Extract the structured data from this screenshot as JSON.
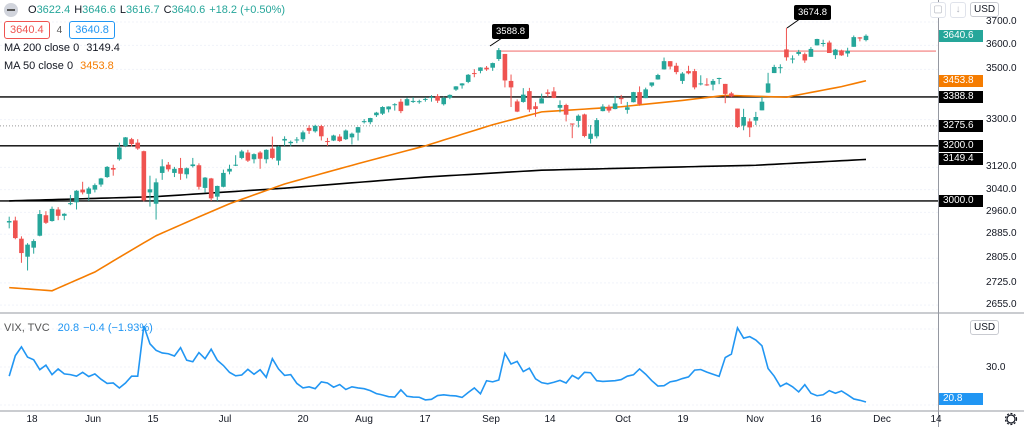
{
  "header": {
    "collapse_icon": "minus-circle-icon",
    "o_label": "O",
    "open": "3622.4",
    "h_label": "H",
    "high": "3646.6",
    "l_label": "L",
    "low": "3616.7",
    "c_label": "C",
    "close": "3640.6",
    "change": "+18.2 (+0.50%)",
    "bid": "3640.4",
    "spread": "4",
    "ask": "3640.8"
  },
  "indicators": [
    {
      "label": "MA 200 close 0",
      "value": "3149.4",
      "color": "#000000"
    },
    {
      "label": "MA 50 close 0",
      "value": "3453.8",
      "color": "#f57c00"
    }
  ],
  "toolbar": {
    "download_icon": "arrow-down-icon",
    "fullscreen_icon": "frame-icon",
    "currency": "USD",
    "vix_currency": "USD",
    "settings_icon": "gear-icon"
  },
  "colors": {
    "up": "#26a69a",
    "down": "#ef5350",
    "ma50": "#f57c00",
    "ma200": "#000000",
    "vix": "#2196f3"
  },
  "price_axis": {
    "scale": "log",
    "ticks": [
      "3700.0",
      "3600.0",
      "3500.0",
      "3300.0",
      "3120.0",
      "3040.0",
      "2960.0",
      "2885.0",
      "2805.0",
      "2725.0",
      "2655.0"
    ],
    "badges": [
      {
        "text": "3640.6",
        "color": "#26a69a"
      },
      {
        "text": "3453.8",
        "color": "#f57c00"
      },
      {
        "text": "3388.8",
        "color": "#000000"
      },
      {
        "text": "3275.6",
        "color": "#000000"
      },
      {
        "text": "3200.0",
        "color": "#000000"
      },
      {
        "text": "3149.4",
        "color": "#000000"
      },
      {
        "text": "3000.0",
        "color": "#000000"
      }
    ]
  },
  "annotations": {
    "callouts": [
      "3588.8",
      "3674.8"
    ],
    "horizontal_lines": [
      3388.8,
      3200,
      3000
    ],
    "dotted_line": 3275.6,
    "resistance_line": 3576
  },
  "time_axis": [
    "18",
    "Jun",
    "15",
    "Jul",
    "20",
    "Aug",
    "17",
    "Sep",
    "14",
    "Oct",
    "19",
    "Nov",
    "16",
    "Dec",
    "14"
  ],
  "vix": {
    "title": "VIX, TVC",
    "value": "20.8",
    "change": "−0.4 (−1.93%)",
    "axis_tick": "30.0",
    "badge": "20.8"
  },
  "chart_data": {
    "type": "candlestick",
    "yscale": "log",
    "ylim": [
      2640,
      3720
    ],
    "candles": [
      [
        "2020-05-11",
        2925,
        2945,
        2905,
        2930
      ],
      [
        "2020-05-12",
        2932,
        2945,
        2868,
        2872
      ],
      [
        "2020-05-13",
        2870,
        2878,
        2790,
        2822
      ],
      [
        "2020-05-14",
        2810,
        2855,
        2765,
        2850
      ],
      [
        "2020-05-15",
        2840,
        2868,
        2820,
        2862
      ],
      [
        "2020-05-18",
        2880,
        2968,
        2878,
        2954
      ],
      [
        "2020-05-19",
        2950,
        2964,
        2920,
        2924
      ],
      [
        "2020-05-20",
        2930,
        2980,
        2928,
        2972
      ],
      [
        "2020-05-21",
        2970,
        2978,
        2933,
        2948
      ],
      [
        "2020-05-22",
        2948,
        2957,
        2933,
        2955
      ],
      [
        "2020-05-26",
        2990,
        3021,
        2985,
        2992
      ],
      [
        "2020-05-27",
        2995,
        3038,
        2970,
        3036
      ],
      [
        "2020-05-28",
        3040,
        3068,
        3023,
        3030
      ],
      [
        "2020-05-29",
        3025,
        3050,
        3000,
        3044
      ],
      [
        "2020-06-01",
        3040,
        3062,
        3030,
        3056
      ],
      [
        "2020-06-02",
        3058,
        3082,
        3050,
        3080
      ],
      [
        "2020-06-03",
        3085,
        3125,
        3082,
        3122
      ],
      [
        "2020-06-04",
        3118,
        3130,
        3090,
        3112
      ],
      [
        "2020-06-05",
        3150,
        3212,
        3145,
        3194
      ],
      [
        "2020-06-08",
        3200,
        3233,
        3195,
        3232
      ],
      [
        "2020-06-09",
        3225,
        3230,
        3198,
        3207
      ],
      [
        "2020-06-10",
        3212,
        3225,
        3185,
        3190
      ],
      [
        "2020-06-11",
        3180,
        3182,
        2998,
        3002
      ],
      [
        "2020-06-12",
        3030,
        3090,
        2980,
        3041
      ],
      [
        "2020-06-15",
        2990,
        3080,
        2935,
        3066
      ],
      [
        "2020-06-16",
        3100,
        3150,
        3075,
        3124
      ],
      [
        "2020-06-17",
        3130,
        3140,
        3105,
        3113
      ],
      [
        "2020-06-18",
        3100,
        3122,
        3085,
        3115
      ],
      [
        "2020-06-19",
        3118,
        3155,
        3075,
        3097
      ],
      [
        "2020-06-22",
        3095,
        3120,
        3080,
        3117
      ],
      [
        "2020-06-23",
        3125,
        3155,
        3120,
        3131
      ],
      [
        "2020-06-24",
        3128,
        3135,
        3040,
        3050
      ],
      [
        "2020-06-25",
        3046,
        3085,
        3030,
        3083
      ],
      [
        "2020-06-26",
        3080,
        3082,
        3000,
        3009
      ],
      [
        "2020-06-29",
        3015,
        3054,
        3000,
        3053
      ],
      [
        "2020-06-30",
        3050,
        3112,
        3048,
        3100
      ],
      [
        "2020-07-01",
        3105,
        3130,
        3095,
        3115
      ],
      [
        "2020-07-02",
        3130,
        3165,
        3125,
        3130
      ],
      [
        "2020-07-06",
        3155,
        3185,
        3150,
        3179
      ],
      [
        "2020-07-07",
        3175,
        3185,
        3140,
        3145
      ],
      [
        "2020-07-08",
        3150,
        3172,
        3135,
        3169
      ],
      [
        "2020-07-09",
        3175,
        3180,
        3115,
        3152
      ],
      [
        "2020-07-10",
        3150,
        3187,
        3135,
        3185
      ],
      [
        "2020-07-13",
        3190,
        3235,
        3150,
        3155
      ],
      [
        "2020-07-14",
        3145,
        3200,
        3128,
        3197
      ],
      [
        "2020-07-15",
        3220,
        3236,
        3200,
        3226
      ],
      [
        "2020-07-16",
        3210,
        3220,
        3198,
        3215
      ],
      [
        "2020-07-17",
        3222,
        3233,
        3210,
        3224
      ],
      [
        "2020-07-20",
        3225,
        3258,
        3215,
        3251
      ],
      [
        "2020-07-21",
        3268,
        3278,
        3245,
        3257
      ],
      [
        "2020-07-22",
        3255,
        3280,
        3250,
        3276
      ],
      [
        "2020-07-23",
        3275,
        3280,
        3220,
        3236
      ],
      [
        "2020-07-24",
        3218,
        3230,
        3200,
        3215
      ],
      [
        "2020-07-27",
        3220,
        3242,
        3218,
        3239
      ],
      [
        "2020-07-28",
        3235,
        3244,
        3215,
        3218
      ],
      [
        "2020-07-29",
        3225,
        3262,
        3222,
        3258
      ],
      [
        "2020-07-30",
        3232,
        3250,
        3205,
        3246
      ],
      [
        "2020-07-31",
        3250,
        3272,
        3220,
        3271
      ],
      [
        "2020-08-03",
        3290,
        3302,
        3285,
        3294
      ],
      [
        "2020-08-04",
        3290,
        3307,
        3282,
        3306
      ],
      [
        "2020-08-05",
        3317,
        3330,
        3310,
        3327
      ],
      [
        "2020-08-06",
        3323,
        3352,
        3318,
        3349
      ],
      [
        "2020-08-07",
        3340,
        3352,
        3328,
        3351
      ],
      [
        "2020-08-10",
        3357,
        3364,
        3335,
        3360
      ],
      [
        "2020-08-11",
        3370,
        3381,
        3325,
        3333
      ],
      [
        "2020-08-12",
        3355,
        3387,
        3354,
        3380
      ],
      [
        "2020-08-13",
        3372,
        3388,
        3365,
        3373
      ],
      [
        "2020-08-14",
        3368,
        3378,
        3362,
        3372
      ],
      [
        "2020-08-17",
        3380,
        3388,
        3370,
        3381
      ],
      [
        "2020-08-18",
        3387,
        3396,
        3370,
        3389
      ],
      [
        "2020-08-19",
        3392,
        3400,
        3365,
        3374
      ],
      [
        "2020-08-20",
        3360,
        3390,
        3355,
        3385
      ],
      [
        "2020-08-21",
        3386,
        3399,
        3380,
        3397
      ],
      [
        "2020-08-24",
        3418,
        3432,
        3413,
        3431
      ],
      [
        "2020-08-25",
        3435,
        3444,
        3422,
        3443
      ],
      [
        "2020-08-26",
        3449,
        3481,
        3444,
        3478
      ],
      [
        "2020-08-27",
        3485,
        3501,
        3468,
        3484
      ],
      [
        "2020-08-28",
        3494,
        3509,
        3484,
        3508
      ],
      [
        "2020-08-31",
        3507,
        3514,
        3494,
        3500
      ],
      [
        "2020-09-01",
        3507,
        3528,
        3494,
        3526
      ],
      [
        "2020-09-02",
        3543,
        3588.8,
        3535,
        3580
      ],
      [
        "2020-09-03",
        3564,
        3564,
        3427,
        3455
      ],
      [
        "2020-09-04",
        3453,
        3479,
        3349,
        3427
      ],
      [
        "2020-09-08",
        3371,
        3379,
        3329,
        3331
      ],
      [
        "2020-09-09",
        3369,
        3424,
        3366,
        3398
      ],
      [
        "2020-09-10",
        3412,
        3425,
        3329,
        3339
      ],
      [
        "2020-09-11",
        3352,
        3368,
        3311,
        3341
      ],
      [
        "2020-09-14",
        3363,
        3402,
        3363,
        3383
      ],
      [
        "2020-09-15",
        3407,
        3419,
        3389,
        3401
      ],
      [
        "2020-09-16",
        3411,
        3428,
        3384,
        3385
      ],
      [
        "2020-09-17",
        3346,
        3375,
        3328,
        3357
      ],
      [
        "2020-09-18",
        3357,
        3362,
        3293,
        3319
      ],
      [
        "2020-09-21",
        3285,
        3285,
        3229,
        3281
      ],
      [
        "2020-09-22",
        3295,
        3320,
        3270,
        3315
      ],
      [
        "2020-09-23",
        3320,
        3323,
        3232,
        3237
      ],
      [
        "2020-09-24",
        3226,
        3279,
        3209,
        3246
      ],
      [
        "2020-09-25",
        3236,
        3306,
        3228,
        3298
      ],
      [
        "2020-09-28",
        3333,
        3360,
        3332,
        3351
      ],
      [
        "2020-09-29",
        3350,
        3358,
        3327,
        3335
      ],
      [
        "2020-09-30",
        3341,
        3393,
        3340,
        3363
      ],
      [
        "2020-10-01",
        3385,
        3397,
        3361,
        3380
      ],
      [
        "2020-10-02",
        3338,
        3369,
        3323,
        3348
      ],
      [
        "2020-10-05",
        3368,
        3409,
        3367,
        3408
      ],
      [
        "2020-10-06",
        3408,
        3431,
        3354,
        3361
      ],
      [
        "2020-10-07",
        3384,
        3426,
        3384,
        3419
      ],
      [
        "2020-10-08",
        3434,
        3447,
        3428,
        3447
      ],
      [
        "2020-10-09",
        3459,
        3482,
        3458,
        3477
      ],
      [
        "2020-10-12",
        3500,
        3549,
        3499,
        3534
      ],
      [
        "2020-10-13",
        3534,
        3534,
        3500,
        3512
      ],
      [
        "2020-10-14",
        3515,
        3527,
        3480,
        3489
      ],
      [
        "2020-10-15",
        3453,
        3489,
        3441,
        3483
      ],
      [
        "2020-10-16",
        3493,
        3515,
        3480,
        3484
      ],
      [
        "2020-10-19",
        3493,
        3502,
        3419,
        3427
      ],
      [
        "2020-10-20",
        3439,
        3476,
        3435,
        3443
      ],
      [
        "2020-10-21",
        3439,
        3464,
        3433,
        3435
      ],
      [
        "2020-10-22",
        3438,
        3461,
        3415,
        3453
      ],
      [
        "2020-10-23",
        3464,
        3466,
        3440,
        3465
      ],
      [
        "2020-10-26",
        3441,
        3441,
        3364,
        3401
      ],
      [
        "2020-10-27",
        3403,
        3409,
        3388,
        3390
      ],
      [
        "2020-10-28",
        3343,
        3343,
        3268,
        3271
      ],
      [
        "2020-10-29",
        3277,
        3342,
        3259,
        3310
      ],
      [
        "2020-10-30",
        3293,
        3305,
        3233,
        3270
      ],
      [
        "2020-11-02",
        3296,
        3330,
        3279,
        3310
      ],
      [
        "2020-11-03",
        3336,
        3389,
        3336,
        3370
      ],
      [
        "2020-11-04",
        3406,
        3486,
        3405,
        3443
      ],
      [
        "2020-11-05",
        3485,
        3519,
        3485,
        3510
      ],
      [
        "2020-11-06",
        3508,
        3521,
        3484,
        3509
      ],
      [
        "2020-11-09",
        3583,
        3674.8,
        3536,
        3550
      ],
      [
        "2020-11-10",
        3543,
        3558,
        3525,
        3545
      ],
      [
        "2020-11-11",
        3564,
        3581,
        3557,
        3572
      ],
      [
        "2020-11-12",
        3563,
        3570,
        3527,
        3537
      ],
      [
        "2020-11-13",
        3552,
        3593,
        3552,
        3585
      ],
      [
        "2020-11-16",
        3600,
        3628,
        3600,
        3627
      ],
      [
        "2020-11-17",
        3610,
        3624,
        3595,
        3610
      ],
      [
        "2020-11-18",
        3612,
        3620,
        3568,
        3568
      ],
      [
        "2020-11-19",
        3559,
        3585,
        3543,
        3582
      ],
      [
        "2020-11-20",
        3579,
        3582,
        3556,
        3558
      ],
      [
        "2020-11-23",
        3566,
        3590,
        3552,
        3577
      ],
      [
        "2020-11-24",
        3594,
        3642,
        3594,
        3635
      ],
      [
        "2020-11-25",
        3634,
        3635,
        3617,
        3629
      ],
      [
        "2020-11-27",
        3622.4,
        3646.6,
        3616.7,
        3640.6
      ]
    ],
    "ma50": [
      [
        "2020-05-11",
        2710
      ],
      [
        "2020-05-20",
        2700
      ],
      [
        "2020-06-01",
        2760
      ],
      [
        "2020-06-15",
        2880
      ],
      [
        "2020-07-01",
        2990
      ],
      [
        "2020-07-15",
        3060
      ],
      [
        "2020-08-03",
        3140
      ],
      [
        "2020-08-17",
        3200
      ],
      [
        "2020-09-01",
        3280
      ],
      [
        "2020-09-14",
        3330
      ],
      [
        "2020-10-01",
        3350
      ],
      [
        "2020-10-15",
        3375
      ],
      [
        "2020-10-26",
        3395
      ],
      [
        "2020-11-09",
        3388
      ],
      [
        "2020-11-20",
        3430
      ],
      [
        "2020-11-27",
        3453.8
      ]
    ],
    "ma200": [
      [
        "2020-05-11",
        3000
      ],
      [
        "2020-06-15",
        3015
      ],
      [
        "2020-07-15",
        3045
      ],
      [
        "2020-08-17",
        3085
      ],
      [
        "2020-09-14",
        3110
      ],
      [
        "2020-10-15",
        3122
      ],
      [
        "2020-11-02",
        3128
      ],
      [
        "2020-11-27",
        3149.4
      ]
    ],
    "vix_ylim": [
      20,
      41
    ],
    "vix_values": [
      27.6,
      33.0,
      35.3,
      32.6,
      31.9,
      29.3,
      30.5,
      28.0,
      29.5,
      28.2,
      28.0,
      27.6,
      28.6,
      27.5,
      28.2,
      26.8,
      25.7,
      25.8,
      24.5,
      25.8,
      27.6,
      27.6,
      40.8,
      36.1,
      34.4,
      33.7,
      33.5,
      32.9,
      35.1,
      31.8,
      31.4,
      33.8,
      32.2,
      34.7,
      31.8,
      30.4,
      28.6,
      27.7,
      27.9,
      29.4,
      28.1,
      29.3,
      27.3,
      32.2,
      29.5,
      27.8,
      28.0,
      25.7,
      24.5,
      24.8,
      24.3,
      26.1,
      25.8,
      24.7,
      25.4,
      24.1,
      24.8,
      24.5,
      24.3,
      23.8,
      23.0,
      22.65,
      22.2,
      22.1,
      24.0,
      22.3,
      22.1,
      22.05,
      21.35,
      21.5,
      22.5,
      22.7,
      22.5,
      22.4,
      22.0,
      23.3,
      24.5,
      22.96,
      26.4,
      26.1,
      26.6,
      33.6,
      30.8,
      31.5,
      28.8,
      29.7,
      26.9,
      25.9,
      25.6,
      26.0,
      26.5,
      25.8,
      27.8,
      26.9,
      28.6,
      28.5,
      26.4,
      26.2,
      26.3,
      26.4,
      26.7,
      27.6,
      27.96,
      29.5,
      28.1,
      26.4,
      25.0,
      25.1,
      26.1,
      26.4,
      26.97,
      27.4,
      29.2,
      29.35,
      28.65,
      28.1,
      27.55,
      32.5,
      33.4,
      40.3,
      37.6,
      38.0,
      37.1,
      35.6,
      29.6,
      27.6,
      24.9,
      25.75,
      24.8,
      23.45,
      25.35,
      23.1,
      22.45,
      22.7,
      23.8,
      23.1,
      23.7,
      22.7,
      21.6,
      21.25,
      20.8
    ]
  }
}
